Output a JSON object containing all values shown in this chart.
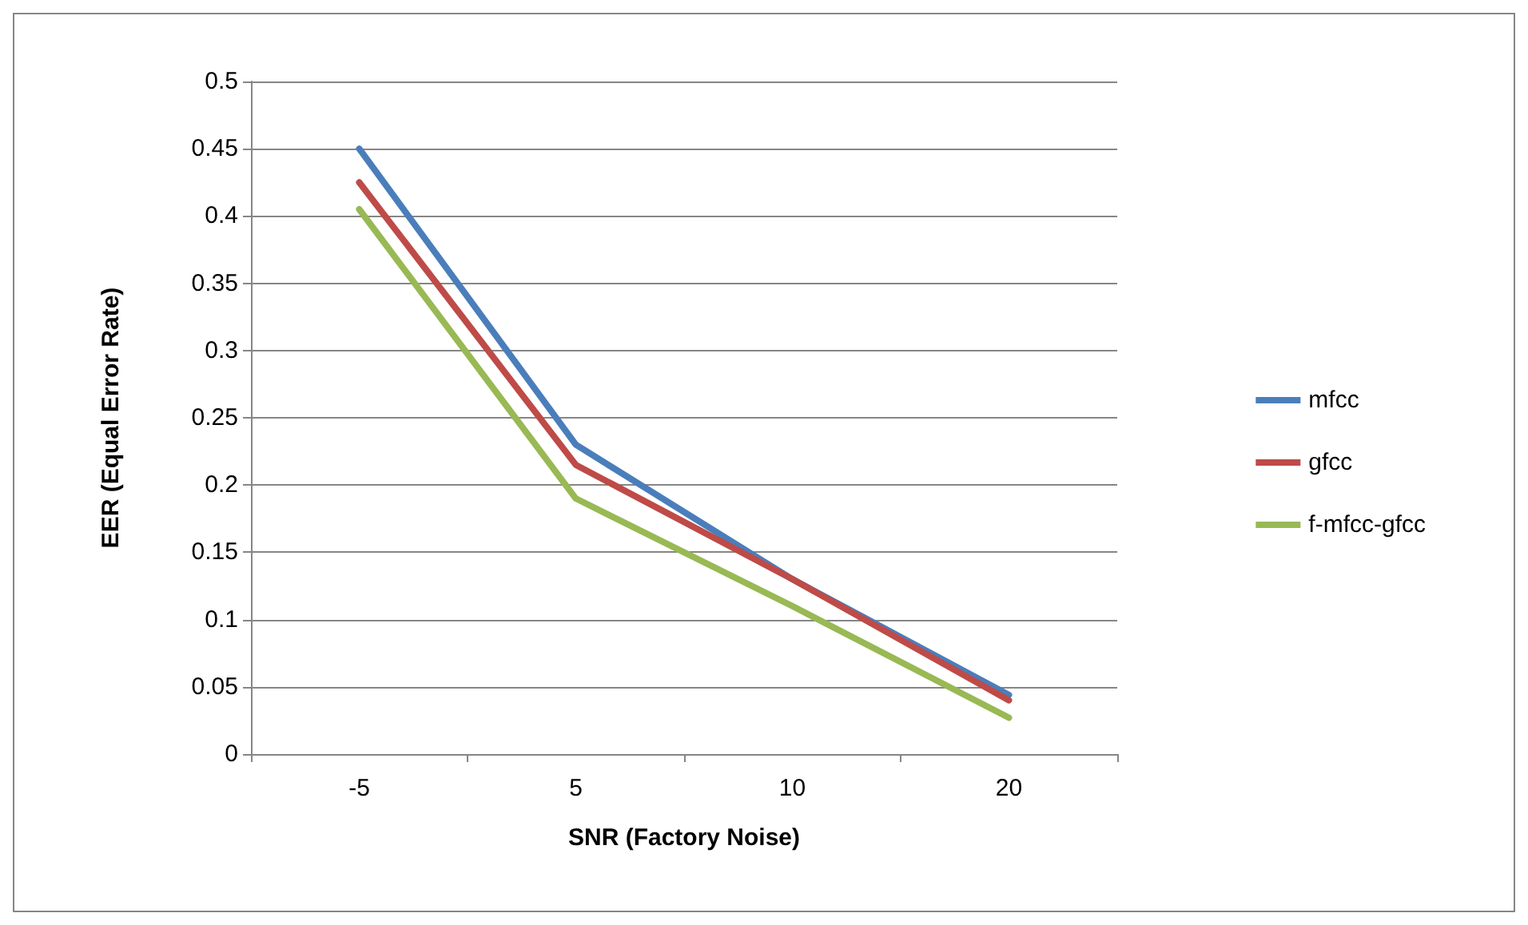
{
  "chart_data": {
    "type": "line",
    "xlabel": "SNR (Factory Noise)",
    "ylabel": "EER (Equal Error Rate)",
    "categories": [
      "-5",
      "5",
      "10",
      "20"
    ],
    "series": [
      {
        "name": "mfcc",
        "color": "#4a7ebb",
        "values": [
          0.45,
          0.23,
          0.13,
          0.044
        ]
      },
      {
        "name": "gfcc",
        "color": "#be4b48",
        "values": [
          0.425,
          0.215,
          0.13,
          0.04
        ]
      },
      {
        "name": "f-mfcc-gfcc",
        "color": "#98b954",
        "values": [
          0.405,
          0.19,
          0.11,
          0.027
        ]
      }
    ],
    "ylim": [
      0,
      0.5
    ],
    "yticks": [
      0,
      0.05,
      0.1,
      0.15,
      0.2,
      0.25,
      0.3,
      0.35,
      0.4,
      0.45,
      0.5
    ],
    "grid": "y",
    "legend": "right",
    "marker": "none",
    "line_style": "solid"
  }
}
